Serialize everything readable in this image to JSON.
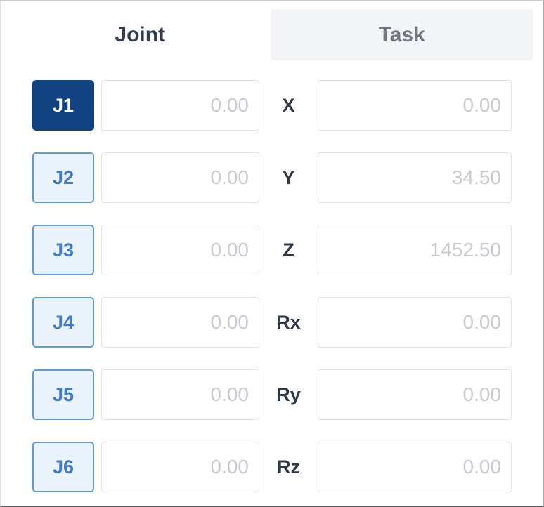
{
  "tabs": {
    "joint": {
      "label": "Joint"
    },
    "task": {
      "label": "Task"
    },
    "active_tab": "Joint"
  },
  "joint": {
    "selected_button": "J1",
    "rows": [
      {
        "button": "J1",
        "value": "0.00"
      },
      {
        "button": "J2",
        "value": "0.00"
      },
      {
        "button": "J3",
        "value": "0.00"
      },
      {
        "button": "J4",
        "value": "0.00"
      },
      {
        "button": "J5",
        "value": "0.00"
      },
      {
        "button": "J6",
        "value": "0.00"
      }
    ]
  },
  "task": {
    "rows": [
      {
        "label": "X",
        "value": "0.00"
      },
      {
        "label": "Y",
        "value": "34.50"
      },
      {
        "label": "Z",
        "value": "1452.50"
      },
      {
        "label": "Rx",
        "value": "0.00"
      },
      {
        "label": "Ry",
        "value": "0.00"
      },
      {
        "label": "Rz",
        "value": "0.00"
      }
    ]
  },
  "colors": {
    "selected_joint_button_bg": "#12417f",
    "joint_button_border": "#609bd5",
    "joint_button_text": "#3d7cc9",
    "joint_button_bg": "#eaf3fb",
    "inactive_tab_bg": "#f2f4f7",
    "active_tab_text": "#333c4e",
    "inactive_tab_text": "#6f7780",
    "value_text": "#c7cbd1"
  }
}
